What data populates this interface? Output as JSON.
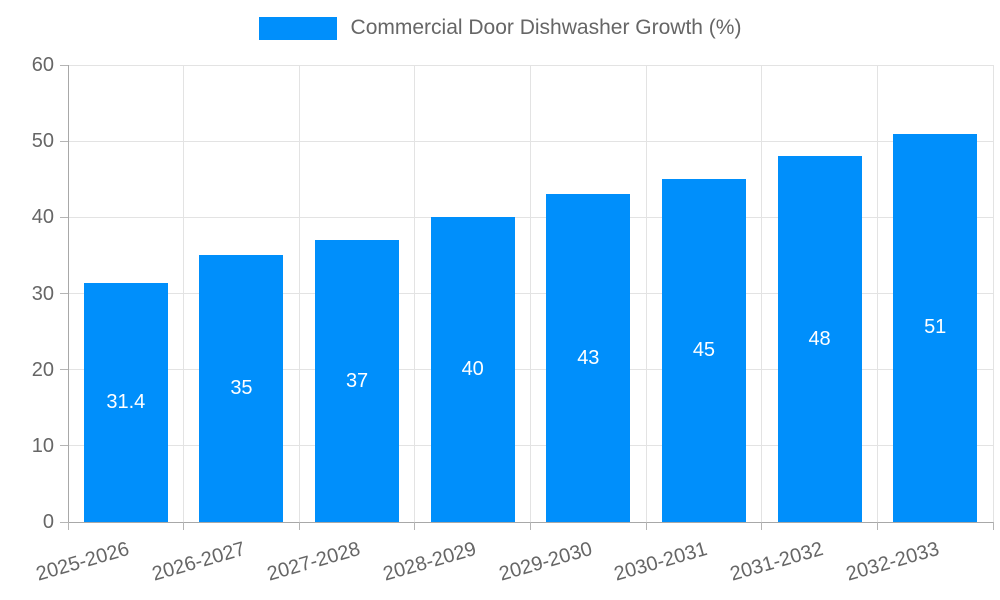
{
  "colors": {
    "bar": "#008FFB",
    "grid": "#e3e3e3",
    "axis": "#a8a8a8",
    "tick": "#b5b5b5",
    "text": "#666666",
    "value_label": "#ffffff"
  },
  "legend": {
    "label": "Commercial Door Dishwasher Growth (%)"
  },
  "chart_data": {
    "type": "bar",
    "title": "Commercial Door Dishwasher Growth (%)",
    "categories": [
      "2025-2026",
      "2026-2027",
      "2027-2028",
      "2028-2029",
      "2029-2030",
      "2030-2031",
      "2031-2032",
      "2032-2033"
    ],
    "values": [
      31.4,
      35,
      37,
      40,
      43,
      45,
      48,
      51
    ],
    "value_labels": [
      "31.4",
      "35",
      "37",
      "40",
      "43",
      "45",
      "48",
      "51"
    ],
    "xlabel": "",
    "ylabel": "",
    "ylim": [
      0,
      60
    ],
    "yticks": [
      0,
      10,
      20,
      30,
      40,
      50,
      60
    ],
    "grid": true,
    "legend_position": "top"
  }
}
